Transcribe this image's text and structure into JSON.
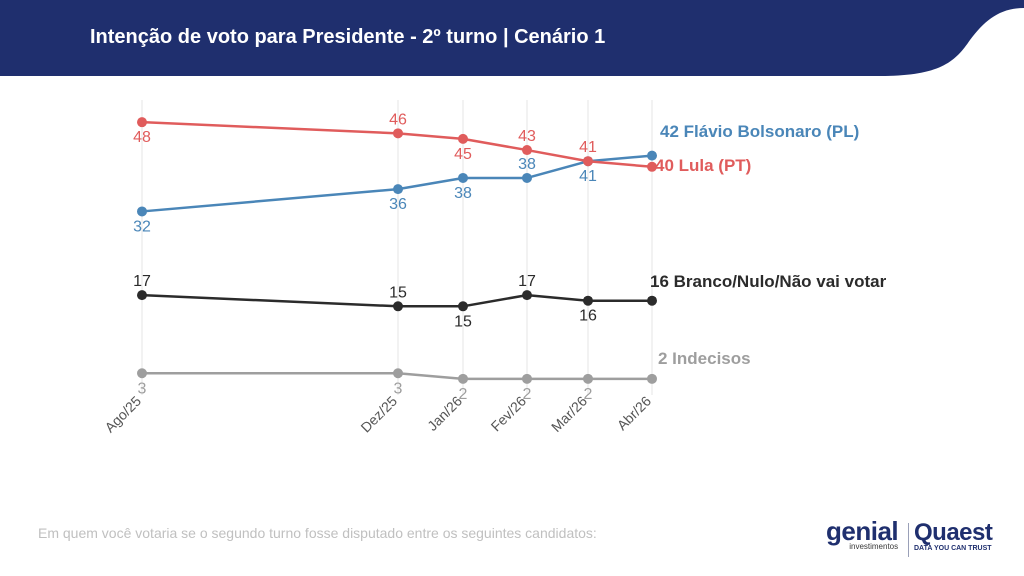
{
  "header": {
    "title": "Intenção de voto para Presidente - 2º turno | Cenário 1",
    "color": "#1f2f6e"
  },
  "footer": {
    "question": "Em quem você votaria se o segundo turno fosse disputado entre os seguintes candidatos:"
  },
  "logos": {
    "genial": "genial",
    "genial_sub": "investimentos",
    "quaest": "Quaest",
    "quaest_sub": "DATA YOU CAN TRUST"
  },
  "chart_data": {
    "type": "line",
    "x": [
      "Ago/25",
      "Dez/25",
      "Jan/26",
      "Fev/26",
      "Mar/26",
      "Abr/26"
    ],
    "ylim": [
      0,
      50
    ],
    "grid": "vertical",
    "series": [
      {
        "name": "Flávio Bolsonaro (PL)",
        "end_label": "42 Flávio Bolsonaro (PL)",
        "values": [
          32,
          36,
          38,
          38,
          41,
          42
        ],
        "color": "#4a86b8",
        "label_pos": [
          "below",
          "below",
          "below",
          "above",
          "below",
          null
        ]
      },
      {
        "name": "Lula (PT)",
        "end_label": "40 Lula (PT)",
        "values": [
          48,
          46,
          45,
          43,
          41,
          40
        ],
        "color": "#e05c5c",
        "label_pos": [
          "below",
          "above",
          "below",
          "above",
          "above",
          null
        ]
      },
      {
        "name": "Branco/Nulo/Não vai votar",
        "end_label": "16 Branco/Nulo/Não vai votar",
        "values": [
          17,
          15,
          15,
          17,
          16,
          16
        ],
        "color": "#2b2b2b",
        "label_pos": [
          "above",
          "above",
          "below",
          "above",
          "below",
          null
        ]
      },
      {
        "name": "Indecisos",
        "end_label": "2 Indecisos",
        "values": [
          3,
          3,
          2,
          2,
          2,
          2
        ],
        "color": "#9e9e9e",
        "label_pos": [
          "below",
          "below",
          "below",
          "below",
          "below",
          null
        ]
      }
    ]
  }
}
